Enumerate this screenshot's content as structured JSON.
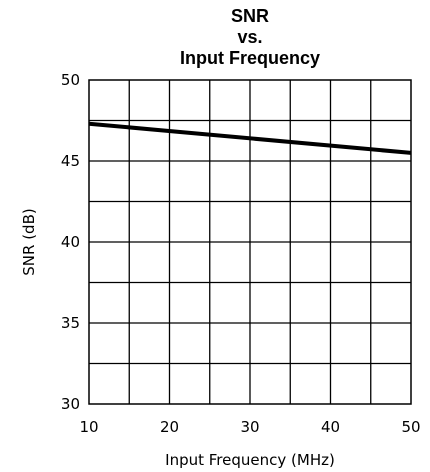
{
  "chart_data": {
    "type": "line",
    "title": [
      "SNR",
      "vs.",
      "Input Frequency"
    ],
    "xlabel": "Input Frequency (MHz)",
    "ylabel": "SNR (dB)",
    "xlim": [
      10,
      50
    ],
    "ylim": [
      30,
      50
    ],
    "x_ticks": [
      10,
      20,
      30,
      40,
      50
    ],
    "y_ticks": [
      30,
      35,
      40,
      45,
      50
    ],
    "x_grid_step": 5,
    "y_grid_step": 2.5,
    "grid": true,
    "series": [
      {
        "x": [
          10,
          50
        ],
        "y": [
          47.3,
          45.5
        ]
      }
    ]
  }
}
